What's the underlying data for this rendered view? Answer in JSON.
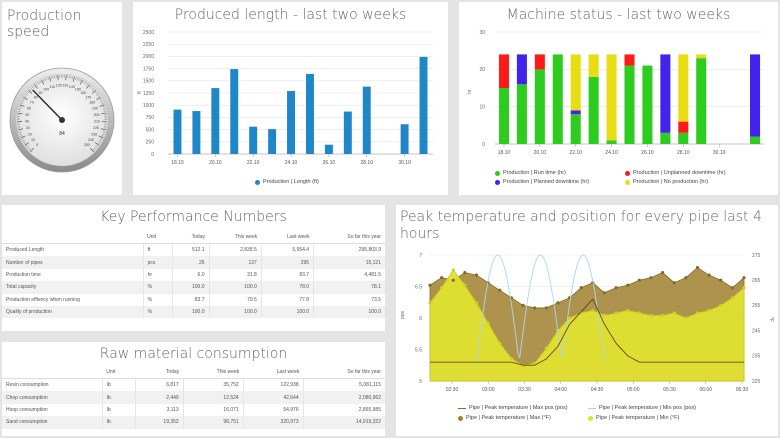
{
  "speed": {
    "title": "Production speed",
    "gauge_value": "84",
    "gauge_ticks": [
      "0",
      "10",
      "20",
      "30",
      "40",
      "50",
      "60",
      "70",
      "80",
      "90",
      "100",
      "110",
      "120",
      "130",
      "140",
      "150",
      "160",
      "170",
      "180",
      "190",
      "200",
      "210",
      "220",
      "230",
      "240",
      "250"
    ],
    "needle_fraction": 0.336
  },
  "length": {
    "title": "Produced length - last two weeks",
    "yaxis_unit": "ft",
    "chart_data": {
      "type": "bar",
      "x_labels": [
        "18.10",
        "20.10",
        "22.10",
        "24.10",
        "26.10",
        "28.10",
        "30.10"
      ],
      "ylim": [
        0,
        2500
      ],
      "yticks": [
        "0",
        "250",
        "500",
        "750",
        "1000",
        "1250",
        "1500",
        "1750",
        "2000",
        "2250",
        "2500"
      ],
      "values": [
        910,
        880,
        1350,
        1740,
        560,
        510,
        1290,
        1640,
        190,
        870,
        1380,
        0,
        610,
        1990
      ],
      "series": [
        {
          "name": "Production | Length (ft)",
          "color": "#1f86c8"
        }
      ]
    }
  },
  "machine": {
    "title": "Machine status - last two weeks",
    "yaxis_unit": "hr",
    "chart_data": {
      "type": "bar",
      "stacked": true,
      "x_labels": [
        "18.10",
        "20.10",
        "22.10",
        "24.10",
        "26.10",
        "28.10",
        "30.10"
      ],
      "ylim": [
        0,
        30
      ],
      "yticks": [
        "0",
        "10",
        "20",
        "30"
      ],
      "series": [
        {
          "name": "Production | Run time (hr)",
          "color": "#2ecc1e",
          "values": [
            15,
            16,
            20,
            24,
            8,
            18,
            1,
            21,
            21,
            3,
            3,
            23,
            0,
            0,
            2
          ]
        },
        {
          "name": "Production | Unplanned downtime (hr)",
          "color": "#ff1a1a",
          "values": [
            9,
            0,
            4,
            0,
            0,
            0,
            0,
            3,
            0,
            0,
            3,
            0,
            0,
            0,
            0
          ]
        },
        {
          "name": "Production | Planned downtime (hr)",
          "color": "#4422ee",
          "values": [
            0,
            8,
            0,
            0,
            1,
            0,
            0,
            0,
            0,
            21,
            0,
            0,
            0,
            0,
            22
          ]
        },
        {
          "name": "Production | No production (hr)",
          "color": "#e8dc12",
          "values": [
            0,
            0,
            0,
            0,
            15,
            6,
            23,
            0,
            0,
            0,
            18,
            1,
            0,
            0,
            0
          ]
        }
      ]
    }
  },
  "kpi": {
    "title": "Key Performance Numbers",
    "columns": [
      "",
      "Unit",
      "Today",
      "This week",
      "Last week",
      "So far this year"
    ],
    "rows": [
      [
        "Produced Length",
        "ft",
        "512.1",
        "2,838.5",
        "5,954.4",
        "295,803.9"
      ],
      [
        "Number of pipes",
        "pcs",
        "26",
        "137",
        "295",
        "15,121"
      ],
      [
        "Production time",
        "hr",
        "6.0",
        "31.8",
        "83.7",
        "4,481.5"
      ],
      [
        "Total capacity",
        "%",
        "100.0",
        "100.0",
        "78.0",
        "78.1"
      ],
      [
        "Production effiency when running",
        "%",
        "83.7",
        "79.5",
        "77.8",
        "73.5"
      ],
      [
        "Quality of production",
        "%",
        "100.0",
        "100.0",
        "100.0",
        "100.0"
      ]
    ]
  },
  "raw": {
    "title": "Raw material consumption",
    "columns": [
      "",
      "Unit",
      "Today",
      "This week",
      "Last week",
      "So far this year"
    ],
    "rows": [
      [
        "Resin consumption",
        "lb",
        "6,817",
        "35,752",
        "122,938",
        "5,081,115"
      ],
      [
        "Chop consumption",
        "lb",
        "2,449",
        "12,524",
        "42,644",
        "2,080,962"
      ],
      [
        "Hoop consumption",
        "lb",
        "3,113",
        "16,071",
        "54,976",
        "2,865,985"
      ],
      [
        "Sand consumption",
        "lb",
        "19,352",
        "98,751",
        "320,973",
        "14,919,322"
      ]
    ]
  },
  "temp": {
    "title": "Peak temperature and position for every pipe last 4 hours",
    "left_axis_unit": "pos",
    "right_axis_unit": "°F",
    "chart_data": {
      "type": "area",
      "x_labels": [
        "02:30",
        "03:00",
        "03:30",
        "04:00",
        "04:30",
        "05:00",
        "05:30",
        "06:00",
        "06:30"
      ],
      "left_ylim": [
        5,
        7
      ],
      "left_ticks": [
        "5",
        "5.5",
        "6",
        "6.5",
        "7"
      ],
      "right_ylim": [
        225,
        275
      ],
      "right_ticks": [
        "225",
        "230",
        "235",
        "240",
        "245",
        "250",
        "255",
        "260",
        "265",
        "270",
        "275"
      ],
      "max_temp": [
        263,
        266,
        265,
        268,
        267,
        264,
        261,
        258,
        255,
        254,
        254,
        256,
        258,
        262,
        264,
        260,
        262,
        263,
        265,
        266,
        268,
        264,
        266,
        270,
        267,
        265,
        262,
        266
      ],
      "min_temp": [
        256,
        262,
        269,
        263,
        256,
        248,
        240,
        234,
        231,
        232,
        238,
        245,
        250,
        252,
        253,
        251,
        252,
        253,
        252,
        251,
        251,
        252,
        250,
        252,
        253,
        255,
        258,
        262
      ],
      "max_pos": [
        5.3,
        5.3,
        5.3,
        5.3,
        5.3,
        5.3,
        5.3,
        5.3,
        5.25,
        5.25,
        5.35,
        5.55,
        5.9,
        6.1,
        6.3,
        5.9,
        5.6,
        5.4,
        5.3,
        5.3,
        5.3,
        5.3,
        5.3,
        5.3,
        5.3,
        5.3,
        5.3,
        5.3
      ],
      "legend": [
        {
          "name": "Pipe | Peak temperature | Max pos (pos)",
          "color": "#8a6a30",
          "kind": "line"
        },
        {
          "name": "Pipe | Peak temperature | Min pos (pos)",
          "color": "#a8d8ee",
          "kind": "line"
        },
        {
          "name": "Pipe | Peak temperature | Max (°F)",
          "color": "#a08030",
          "kind": "dot"
        },
        {
          "name": "Pipe | Peak temperature | Min (°F)",
          "color": "#e0e030",
          "kind": "dot"
        }
      ]
    }
  }
}
